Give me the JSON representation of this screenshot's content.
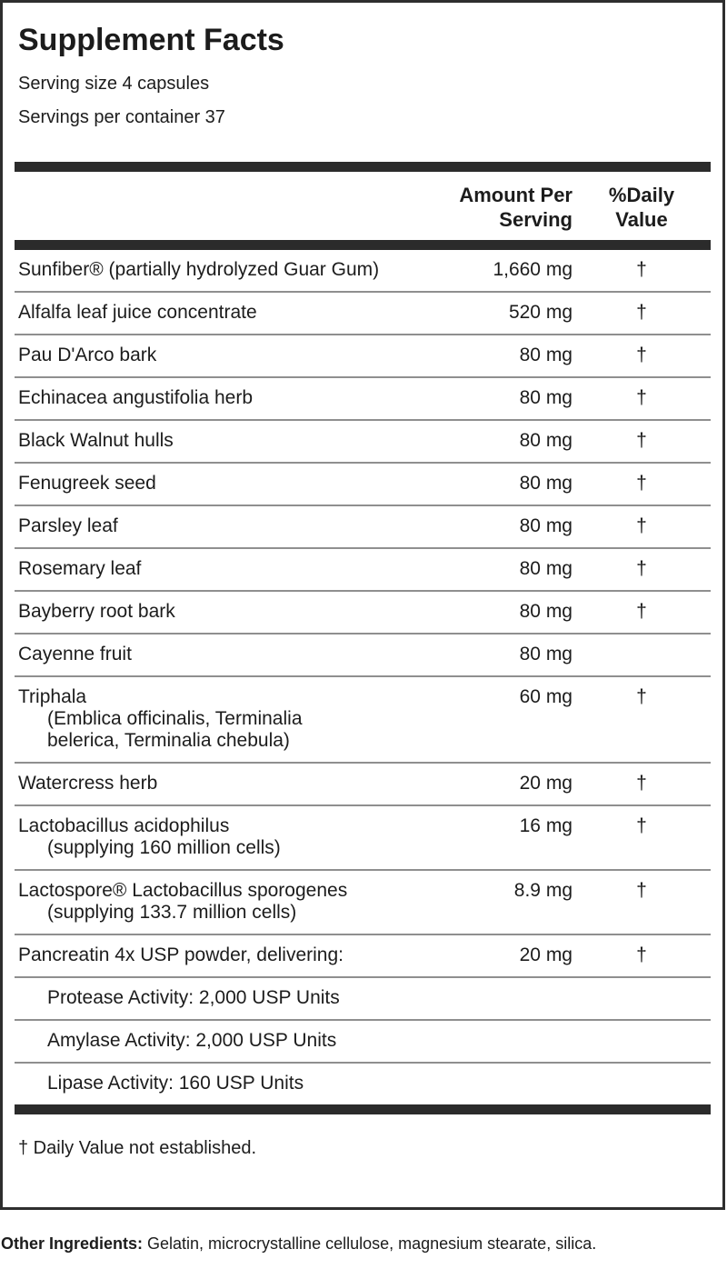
{
  "label": {
    "title": "Supplement Facts",
    "serving_size": "Serving size 4 capsules",
    "servings_per_container": "Servings per container 37",
    "columns": {
      "amount": "Amount Per\nServing",
      "daily_value": "%Daily\nValue"
    },
    "rows": [
      {
        "name": "Sunfiber® (partially hydrolyzed Guar Gum)",
        "amount": "1,660 mg",
        "daily_value": "†"
      },
      {
        "name": "Alfalfa leaf juice concentrate",
        "amount": "520 mg",
        "daily_value": "†"
      },
      {
        "name": "Pau D'Arco bark",
        "amount": "80 mg",
        "daily_value": "†"
      },
      {
        "name": "Echinacea angustifolia herb",
        "amount": "80 mg",
        "daily_value": "†"
      },
      {
        "name": "Black Walnut hulls",
        "amount": "80 mg",
        "daily_value": "†"
      },
      {
        "name": "Fenugreek seed",
        "amount": "80 mg",
        "daily_value": "†"
      },
      {
        "name": "Parsley leaf",
        "amount": "80 mg",
        "daily_value": "†"
      },
      {
        "name": "Rosemary leaf",
        "amount": "80 mg",
        "daily_value": "†"
      },
      {
        "name": "Bayberry root bark",
        "amount": "80 mg",
        "daily_value": "†"
      },
      {
        "name": "Cayenne fruit",
        "amount": "80 mg",
        "daily_value": ""
      },
      {
        "name": "Triphala",
        "subline": "(Emblica officinalis, Terminalia belerica, Terminalia chebula)",
        "amount": "60 mg",
        "daily_value": "†"
      },
      {
        "name": "Watercress herb",
        "amount": "20 mg",
        "daily_value": "†"
      },
      {
        "name": "Lactobacillus acidophilus",
        "subline": "(supplying 160 million cells)",
        "amount": "16 mg",
        "daily_value": "†"
      },
      {
        "name": "Lactospore® Lactobacillus sporogenes",
        "subline": "(supplying 133.7 million cells)",
        "amount": "8.9 mg",
        "daily_value": "†"
      },
      {
        "name": "Pancreatin 4x USP powder, delivering:",
        "amount": "20 mg",
        "daily_value": "†"
      },
      {
        "name": "Protease Activity: 2,000 USP Units",
        "indent": true,
        "amount": "",
        "daily_value": ""
      },
      {
        "name": "Amylase Activity: 2,000 USP Units",
        "indent": true,
        "amount": "",
        "daily_value": ""
      },
      {
        "name": "Lipase Activity: 160 USP Units",
        "indent": true,
        "amount": "",
        "daily_value": ""
      }
    ],
    "footnote": "† Daily Value not established."
  },
  "other_ingredients": {
    "label": "Other Ingredients:",
    "text": " Gelatin, microcrystalline cellulose, magnesium stearate, silica."
  },
  "colors": {
    "text": "#1c1c1c",
    "thick_bar": "#2b2b2b",
    "separator": "#8f8f8f",
    "box_border": "#2e2e2e",
    "background": "#ffffff"
  }
}
